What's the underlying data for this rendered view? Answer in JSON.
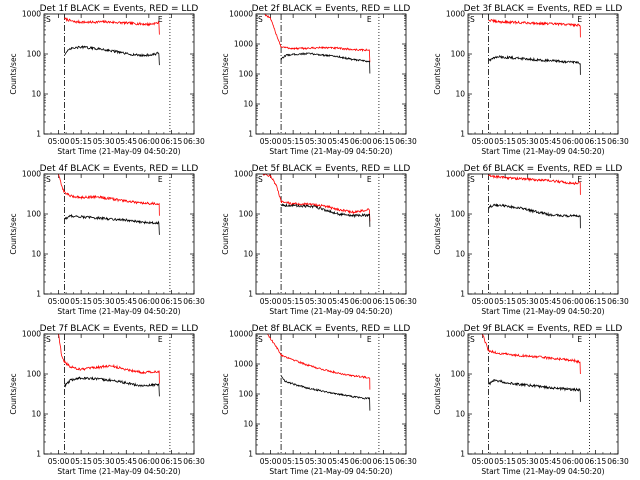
{
  "page": {
    "xlabel": "Start Time (21-May-09 04:50:20)",
    "ylabel": "Counts/sec",
    "flag_start": "S",
    "flag_end": "E",
    "colors": {
      "events": "#000000",
      "lld": "#ff0000",
      "axes": "#000000"
    }
  },
  "chart_data": [
    {
      "type": "line",
      "title": "Det 1f BLACK = Events, RED = LLD",
      "y_scale": "log",
      "ylim": [
        1,
        1000
      ],
      "y_ticks": [
        "1",
        "10",
        "100",
        "1000"
      ],
      "x_ticks": [
        "05:00",
        "05:15",
        "05:30",
        "05:45",
        "06:00",
        "06:15",
        "06:30"
      ],
      "xlim": [
        "04:50:20",
        "06:30"
      ],
      "markers": {
        "start": "05:04",
        "end": "06:14",
        "dotted": "06:14"
      },
      "series": [
        {
          "color": "#ff0000",
          "x": [
            "05:04",
            "05:10",
            "05:20",
            "05:30",
            "05:40",
            "05:50",
            "06:00",
            "06:07"
          ],
          "values": [
            760,
            640,
            620,
            640,
            610,
            580,
            550,
            610
          ]
        },
        {
          "color": "#000000",
          "x": [
            "05:04",
            "05:08",
            "05:15",
            "05:22",
            "05:30",
            "05:38",
            "05:46",
            "05:55",
            "06:02",
            "06:07"
          ],
          "values": [
            100,
            135,
            150,
            140,
            130,
            115,
            100,
            92,
            95,
            105
          ]
        }
      ]
    },
    {
      "type": "line",
      "title": "Det 2f BLACK = Events, RED = LLD",
      "y_scale": "log",
      "ylim": [
        1,
        10000
      ],
      "y_ticks": [
        "1",
        "10",
        "100",
        "1000",
        "10000"
      ],
      "x_ticks": [
        "05:00",
        "05:15",
        "05:30",
        "05:45",
        "06:00",
        "06:15",
        "06:30"
      ],
      "xlim": [
        "04:50:20",
        "06:30"
      ],
      "markers": {
        "start": "05:07",
        "end": "06:12",
        "dotted": "06:12"
      },
      "series": [
        {
          "color": "#ff0000",
          "x": [
            "04:56",
            "05:00",
            "05:04",
            "05:07",
            "05:15",
            "05:25",
            "05:35",
            "05:45",
            "05:55",
            "06:06"
          ],
          "values": [
            10000,
            7000,
            2000,
            800,
            700,
            720,
            760,
            720,
            650,
            620
          ]
        },
        {
          "color": "#000000",
          "x": [
            "05:07",
            "05:10",
            "05:15",
            "05:25",
            "05:35",
            "05:45",
            "05:55",
            "06:06"
          ],
          "values": [
            300,
            420,
            450,
            480,
            430,
            380,
            300,
            260
          ]
        }
      ]
    },
    {
      "type": "line",
      "title": "Det 3f BLACK = Events, RED = LLD",
      "y_scale": "log",
      "ylim": [
        1,
        1000
      ],
      "y_ticks": [
        "1",
        "10",
        "100",
        "1000"
      ],
      "x_ticks": [
        "05:00",
        "05:15",
        "05:30",
        "05:45",
        "06:00",
        "06:15",
        "06:30"
      ],
      "xlim": [
        "04:50:20",
        "06:30"
      ],
      "markers": {
        "start": "05:04",
        "end": "06:11",
        "dotted": "06:11"
      },
      "series": [
        {
          "color": "#ff0000",
          "x": [
            "05:04",
            "05:10",
            "05:20",
            "05:30",
            "05:40",
            "05:50",
            "06:00",
            "06:05"
          ],
          "values": [
            700,
            640,
            620,
            600,
            580,
            560,
            540,
            520
          ]
        },
        {
          "color": "#000000",
          "x": [
            "05:04",
            "05:10",
            "05:20",
            "05:30",
            "05:40",
            "05:50",
            "06:00",
            "06:05"
          ],
          "values": [
            70,
            85,
            80,
            75,
            70,
            66,
            62,
            60
          ]
        }
      ]
    },
    {
      "type": "line",
      "title": "Det 4f BLACK = Events, RED = LLD",
      "y_scale": "log",
      "ylim": [
        1,
        1000
      ],
      "y_ticks": [
        "1",
        "10",
        "100",
        "1000"
      ],
      "x_ticks": [
        "05:00",
        "05:15",
        "05:30",
        "05:45",
        "06:00",
        "06:15",
        "06:30"
      ],
      "xlim": [
        "04:50:20",
        "06:30"
      ],
      "markers": {
        "start": "05:04",
        "end": "06:14",
        "dotted": "06:14"
      },
      "series": [
        {
          "color": "#ff0000",
          "x": [
            "05:00",
            "05:02",
            "05:04",
            "05:08",
            "05:15",
            "05:25",
            "05:35",
            "05:45",
            "05:55",
            "06:07"
          ],
          "values": [
            1000,
            500,
            350,
            280,
            260,
            270,
            240,
            210,
            185,
            180
          ]
        },
        {
          "color": "#000000",
          "x": [
            "05:04",
            "05:08",
            "05:15",
            "05:25",
            "05:35",
            "05:45",
            "05:55",
            "06:07"
          ],
          "values": [
            75,
            90,
            85,
            80,
            75,
            70,
            62,
            60
          ]
        }
      ]
    },
    {
      "type": "line",
      "title": "Det 5f BLACK = Events, RED = LLD",
      "y_scale": "log",
      "ylim": [
        1,
        1000
      ],
      "y_ticks": [
        "1",
        "10",
        "100",
        "1000"
      ],
      "x_ticks": [
        "05:00",
        "05:15",
        "05:30",
        "05:45",
        "06:00",
        "06:15",
        "06:30"
      ],
      "xlim": [
        "04:50:20",
        "06:30"
      ],
      "markers": {
        "start": "05:07",
        "end": "06:12",
        "dotted": "06:12"
      },
      "series": [
        {
          "color": "#ff0000",
          "x": [
            "04:55",
            "05:00",
            "05:04",
            "05:07",
            "05:15",
            "05:25",
            "05:35",
            "05:45",
            "05:55",
            "06:06"
          ],
          "values": [
            1000,
            900,
            500,
            200,
            180,
            175,
            160,
            130,
            110,
            130
          ]
        },
        {
          "color": "#000000",
          "x": [
            "05:07",
            "05:10",
            "05:20",
            "05:30",
            "05:38",
            "05:45",
            "05:55",
            "06:06"
          ],
          "values": [
            170,
            165,
            160,
            150,
            120,
            100,
            90,
            95
          ]
        }
      ]
    },
    {
      "type": "line",
      "title": "Det 6f BLACK = Events, RED = LLD",
      "y_scale": "log",
      "ylim": [
        1,
        1000
      ],
      "y_ticks": [
        "1",
        "10",
        "100",
        "1000"
      ],
      "x_ticks": [
        "05:00",
        "05:15",
        "05:30",
        "05:45",
        "06:00",
        "06:15",
        "06:30"
      ],
      "xlim": [
        "04:50:20",
        "06:30"
      ],
      "markers": {
        "start": "05:04",
        "end": "06:11",
        "dotted": "06:11"
      },
      "series": [
        {
          "color": "#ff0000",
          "x": [
            "05:04",
            "05:10",
            "05:20",
            "05:30",
            "05:40",
            "05:50",
            "06:00",
            "06:05"
          ],
          "values": [
            900,
            850,
            780,
            740,
            700,
            650,
            580,
            600
          ]
        },
        {
          "color": "#000000",
          "x": [
            "05:04",
            "05:08",
            "05:15",
            "05:25",
            "05:35",
            "05:45",
            "05:55",
            "06:05"
          ],
          "values": [
            150,
            165,
            160,
            140,
            115,
            95,
            90,
            88
          ]
        }
      ]
    },
    {
      "type": "line",
      "title": "Det 7f BLACK = Events, RED = LLD",
      "y_scale": "log",
      "ylim": [
        1,
        1000
      ],
      "y_ticks": [
        "1",
        "10",
        "100",
        "1000"
      ],
      "x_ticks": [
        "05:00",
        "05:15",
        "05:30",
        "05:45",
        "06:00",
        "06:15",
        "06:30"
      ],
      "xlim": [
        "04:50:20",
        "06:30"
      ],
      "markers": {
        "start": "05:04",
        "end": "06:14",
        "dotted": "06:14"
      },
      "series": [
        {
          "color": "#ff0000",
          "x": [
            "05:00",
            "05:02",
            "05:04",
            "05:08",
            "05:15",
            "05:25",
            "05:35",
            "05:45",
            "05:55",
            "06:07"
          ],
          "values": [
            1000,
            300,
            200,
            150,
            130,
            145,
            160,
            130,
            110,
            115
          ]
        },
        {
          "color": "#000000",
          "x": [
            "05:04",
            "05:08",
            "05:15",
            "05:25",
            "05:35",
            "05:45",
            "05:55",
            "06:07"
          ],
          "values": [
            50,
            70,
            80,
            75,
            70,
            60,
            50,
            55
          ]
        }
      ]
    },
    {
      "type": "line",
      "title": "Det 8f BLACK = Events, RED = LLD",
      "y_scale": "log",
      "ylim": [
        1,
        10000
      ],
      "y_ticks": [
        "1",
        "10",
        "100",
        "1000",
        "10000"
      ],
      "x_ticks": [
        "05:00",
        "05:15",
        "05:30",
        "05:45",
        "06:00",
        "06:15",
        "06:30"
      ],
      "xlim": [
        "04:50:20",
        "06:30"
      ],
      "markers": {
        "start": "05:07",
        "end": "06:12",
        "dotted": "06:12"
      },
      "series": [
        {
          "color": "#ff0000",
          "x": [
            "04:58",
            "05:02",
            "05:05",
            "05:07",
            "05:15",
            "05:25",
            "05:35",
            "05:45",
            "05:55",
            "06:06"
          ],
          "values": [
            10000,
            5000,
            3000,
            2000,
            1400,
            900,
            650,
            500,
            400,
            350
          ]
        },
        {
          "color": "#000000",
          "x": [
            "05:07",
            "05:10",
            "05:20",
            "05:30",
            "05:40",
            "05:50",
            "06:00",
            "06:06"
          ],
          "values": [
            400,
            260,
            180,
            140,
            110,
            90,
            75,
            70
          ]
        }
      ]
    },
    {
      "type": "line",
      "title": "Det 9f BLACK = Events, RED = LLD",
      "y_scale": "log",
      "ylim": [
        1,
        1000
      ],
      "y_ticks": [
        "1",
        "10",
        "100",
        "1000"
      ],
      "x_ticks": [
        "05:00",
        "05:15",
        "05:30",
        "05:45",
        "06:00",
        "06:15",
        "06:30"
      ],
      "xlim": [
        "04:50:20",
        "06:30"
      ],
      "markers": {
        "start": "05:04",
        "end": "06:11",
        "dotted": "06:11"
      },
      "series": [
        {
          "color": "#ff0000",
          "x": [
            "05:00",
            "05:02",
            "05:04",
            "05:10",
            "05:20",
            "05:30",
            "05:40",
            "05:50",
            "06:00",
            "06:05"
          ],
          "values": [
            1000,
            600,
            380,
            330,
            300,
            280,
            260,
            240,
            220,
            200
          ]
        },
        {
          "color": "#000000",
          "x": [
            "05:04",
            "05:08",
            "05:15",
            "05:25",
            "05:35",
            "05:45",
            "05:55",
            "06:05"
          ],
          "values": [
            55,
            70,
            62,
            55,
            50,
            45,
            42,
            40
          ]
        }
      ]
    }
  ]
}
